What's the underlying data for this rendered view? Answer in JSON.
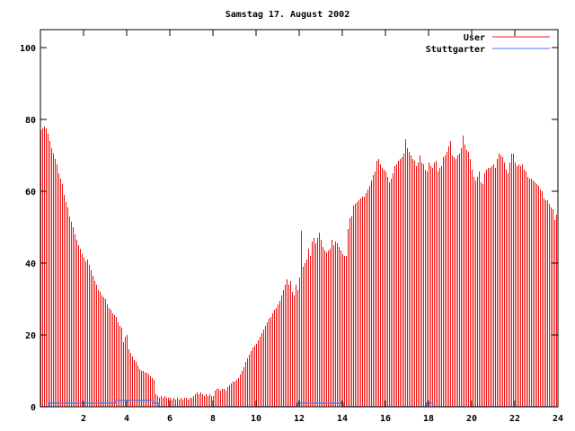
{
  "title": "Samstag 17. August 2002",
  "legend": {
    "user_label": "User",
    "stuttgarter_label": "Stuttgarter"
  },
  "colors": {
    "user": "#ee1111",
    "stuttgarter": "#4477ee",
    "axis": "#000000",
    "background": "#ffffff"
  },
  "chart_data": {
    "type": "bar",
    "title": "Samstag 17. August 2002",
    "x_unit": "hour of day",
    "interval_minutes": 5,
    "xlim": [
      0,
      24
    ],
    "ylim": [
      0,
      105
    ],
    "xticks": [
      0,
      2,
      4,
      6,
      8,
      10,
      12,
      14,
      16,
      18,
      20,
      22,
      24
    ],
    "xtick_labels": [
      "2",
      "4",
      "6",
      "8",
      "10",
      "12",
      "14",
      "16",
      "18",
      "20",
      "22",
      "24"
    ],
    "xtick_label_values": [
      2,
      4,
      6,
      8,
      10,
      12,
      14,
      16,
      18,
      20,
      22,
      24
    ],
    "yticks": [
      0,
      20,
      40,
      60,
      80,
      100
    ],
    "grid": false,
    "legend_position": "top-right",
    "series": [
      {
        "name": "User",
        "style": "impulses",
        "color": "#ee1111",
        "start_hour": 0,
        "step_hours": 0.0833,
        "values": [
          77,
          77.5,
          78,
          77.5,
          76,
          74,
          72,
          70.5,
          69,
          67.5,
          65,
          63.5,
          62,
          59,
          57,
          55.5,
          53,
          51.5,
          50,
          48,
          46.5,
          45,
          44,
          42.5,
          41.5,
          40.5,
          41,
          39.5,
          38,
          36.5,
          35,
          34,
          32.5,
          32,
          31,
          30.5,
          30,
          28.5,
          27.5,
          27,
          26,
          25.5,
          25,
          23.5,
          22.5,
          22,
          18,
          19.5,
          20,
          16,
          15,
          14,
          13,
          12.5,
          11.5,
          10.5,
          10,
          10,
          9.5,
          9.5,
          9,
          8.5,
          8,
          7.5,
          3.5,
          3,
          2.5,
          3,
          2.5,
          3,
          2.5,
          2.5,
          2.5,
          2,
          2.5,
          2,
          2.5,
          2,
          2.5,
          2,
          2.5,
          2.5,
          2,
          2.5,
          2.5,
          3,
          3.5,
          4,
          3.5,
          4,
          3.5,
          3,
          3.5,
          3,
          3.5,
          3,
          3,
          4.5,
          5,
          5,
          4.5,
          5,
          5,
          4.5,
          5.5,
          6,
          6.5,
          7,
          7,
          7.5,
          8,
          9,
          10,
          11,
          12.5,
          13.5,
          14.5,
          15.5,
          16.5,
          17,
          17.5,
          18.5,
          19.5,
          20.5,
          21.5,
          22.5,
          23.5,
          24.5,
          25,
          26,
          27,
          27.5,
          28.5,
          29.5,
          31,
          32.5,
          34,
          35.5,
          34,
          35,
          32,
          31,
          34,
          32.5,
          36,
          49,
          39,
          40,
          41,
          44,
          42,
          46,
          47,
          45.5,
          47,
          48.5,
          46.5,
          44.5,
          43.5,
          43,
          43.5,
          44,
          46.5,
          45,
          46,
          45.5,
          44.5,
          43.5,
          42.5,
          42,
          42,
          49.5,
          52.5,
          53,
          56,
          56.5,
          57,
          57.5,
          58,
          58.5,
          58.5,
          59.5,
          60.5,
          61.5,
          63,
          64.5,
          65.5,
          68.5,
          69,
          67.5,
          66.5,
          66,
          65.5,
          64,
          62.5,
          63.5,
          65,
          67,
          67.5,
          68.5,
          69,
          69.5,
          70.5,
          74.5,
          72,
          71,
          70,
          69,
          68.5,
          67,
          68,
          70,
          68,
          67.5,
          66,
          65.5,
          68,
          67,
          66.5,
          68,
          68.5,
          65.5,
          66.5,
          67,
          69.5,
          70,
          71,
          72.5,
          74,
          70,
          69.5,
          69,
          70,
          70.5,
          72,
          75.5,
          73,
          71.5,
          71,
          69,
          66,
          64,
          63,
          64,
          65.5,
          62.5,
          62,
          65,
          66,
          66.5,
          66.5,
          67,
          67.5,
          66.5,
          69,
          70.5,
          70,
          69.5,
          68,
          66,
          65,
          68,
          70.5,
          70.5,
          68,
          67,
          67.5,
          67,
          67.5,
          66,
          65.5,
          64,
          63.5,
          63.5,
          63,
          62.5,
          62,
          61.5,
          60.5,
          60,
          58,
          57.5,
          57.5,
          56.5,
          55.5,
          55,
          52,
          53.5
        ]
      },
      {
        "name": "Stuttgarter",
        "style": "steps",
        "color": "#4477ee",
        "segments": [
          {
            "from": 0,
            "to": 0.37,
            "value": 0
          },
          {
            "from": 0.37,
            "to": 3.5,
            "value": 1
          },
          {
            "from": 3.5,
            "to": 5.2,
            "value": 1.75
          },
          {
            "from": 5.2,
            "to": 5.5,
            "value": 1
          },
          {
            "from": 5.5,
            "to": 11.9,
            "value": 0
          },
          {
            "from": 11.9,
            "to": 14.05,
            "value": 1
          },
          {
            "from": 14.05,
            "to": 17.9,
            "value": 0
          },
          {
            "from": 17.9,
            "to": 18.2,
            "value": 1
          },
          {
            "from": 18.2,
            "to": 24,
            "value": 0
          }
        ]
      }
    ]
  }
}
